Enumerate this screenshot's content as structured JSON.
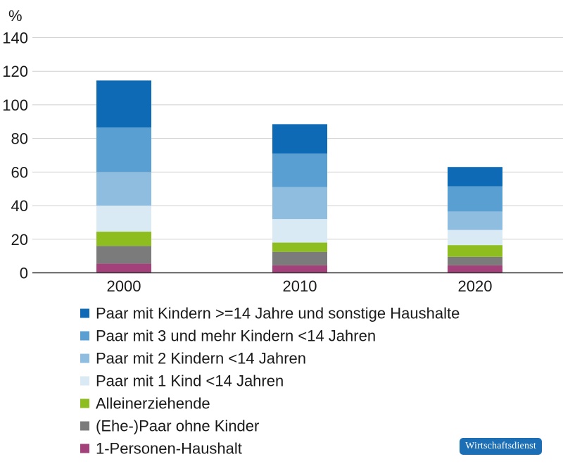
{
  "chart_data": {
    "type": "bar",
    "stacked": true,
    "unit_label": "%",
    "categories": [
      "2000",
      "2010",
      "2020"
    ],
    "ylim": [
      0,
      140
    ],
    "yticks": [
      0,
      20,
      40,
      60,
      80,
      100,
      120,
      140
    ],
    "grid": true,
    "legend_position": "bottom",
    "series": [
      {
        "name": "1-Personen-Haushalt",
        "color": "#a3427a",
        "values": [
          5.5,
          4.5,
          4.5
        ]
      },
      {
        "name": "(Ehe-)Paar ohne Kinder",
        "color": "#7b7b7b",
        "values": [
          10.5,
          8,
          5
        ]
      },
      {
        "name": "Alleinerziehende",
        "color": "#8dbd1e",
        "values": [
          8.5,
          5.5,
          7
        ]
      },
      {
        "name": "Paar mit 1 Kind <14 Jahren",
        "color": "#daeaf5",
        "values": [
          15.5,
          14,
          9
        ]
      },
      {
        "name": "Paar mit 2 Kindern <14 Jahren",
        "color": "#8fbde0",
        "values": [
          20,
          19,
          11
        ]
      },
      {
        "name": "Paar mit 3 und mehr Kindern <14 Jahren",
        "color": "#5a9fd2",
        "values": [
          26.5,
          20,
          15
        ]
      },
      {
        "name": "Paar mit Kindern >=14 Jahre und sonstige Haushalte",
        "color": "#0e6ab5",
        "values": [
          28,
          17.5,
          11.5
        ]
      }
    ]
  },
  "brand": {
    "label": "Wirtschaftsdienst",
    "color": "#1d6fb5"
  }
}
